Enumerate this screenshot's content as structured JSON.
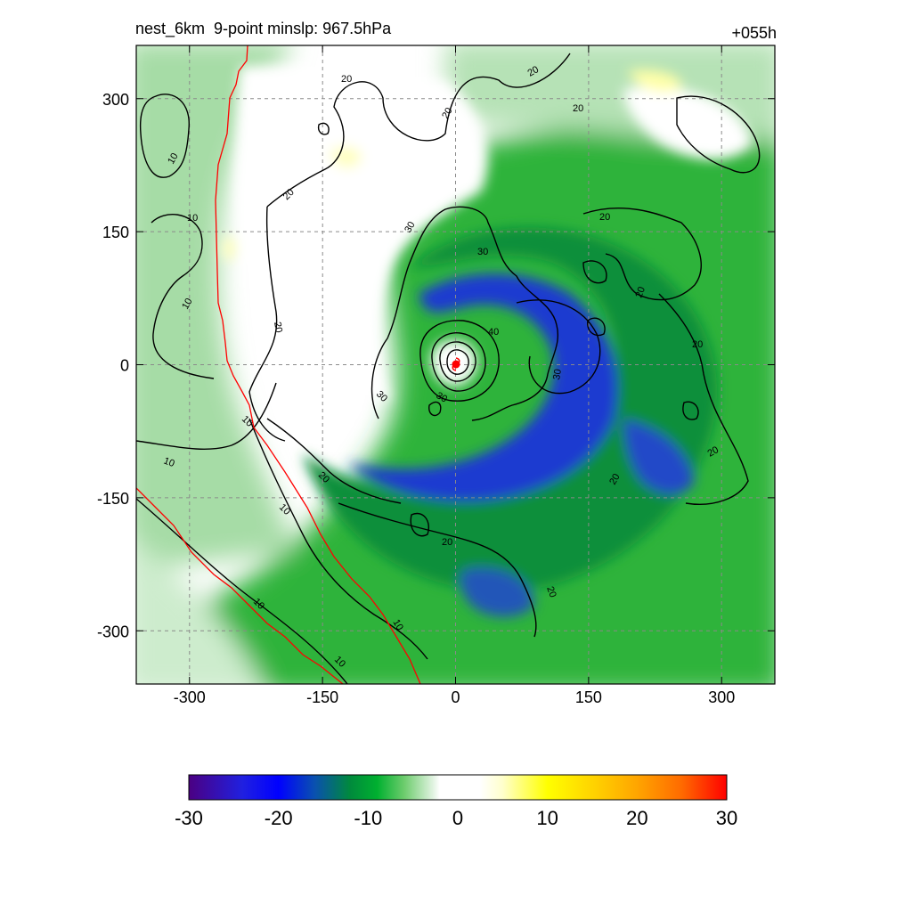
{
  "title_left": "nest_6km  9-point minslp: 967.5hPa",
  "title_right": "+055h",
  "chart_data": {
    "type": "heatmap",
    "xlim": [
      -360,
      360
    ],
    "ylim": [
      -360,
      360
    ],
    "grid": "dashed",
    "x_ticks": [
      -300,
      -150,
      0,
      150,
      300
    ],
    "x_tick_labels": [
      "-300",
      "-150",
      "0",
      "150",
      "300"
    ],
    "y_ticks": [
      300,
      150,
      0,
      -150,
      -300
    ],
    "y_tick_labels": [
      "300",
      "150",
      "0",
      "-150",
      "-300"
    ],
    "storm_center": [
      0,
      0
    ],
    "contour_levels": [
      10,
      20,
      30,
      40
    ],
    "colorbar": {
      "min": -30,
      "max": 30,
      "tick_values": [
        -30,
        -20,
        -10,
        0,
        10,
        20,
        30
      ],
      "tick_labels": [
        "-30",
        "-20",
        "-10",
        "0",
        "10",
        "20",
        "30"
      ],
      "stops": [
        {
          "v": -30,
          "c": "#4b0082"
        },
        {
          "v": -24,
          "c": "#2020e0"
        },
        {
          "v": -20,
          "c": "#0000ff"
        },
        {
          "v": -16,
          "c": "#0a50b0"
        },
        {
          "v": -12,
          "c": "#008a3c"
        },
        {
          "v": -9,
          "c": "#00b030"
        },
        {
          "v": -6,
          "c": "#6ccc6c"
        },
        {
          "v": -3,
          "c": "#d8f0d8"
        },
        {
          "v": -2,
          "c": "#ffffff"
        },
        {
          "v": 2.5,
          "c": "#ffffff"
        },
        {
          "v": 5,
          "c": "#ffffcc"
        },
        {
          "v": 10,
          "c": "#ffff00"
        },
        {
          "v": 15,
          "c": "#ffd400"
        },
        {
          "v": 20,
          "c": "#ffa500"
        },
        {
          "v": 25,
          "c": "#ff6a00"
        },
        {
          "v": 30,
          "c": "#ff0000"
        }
      ]
    }
  }
}
